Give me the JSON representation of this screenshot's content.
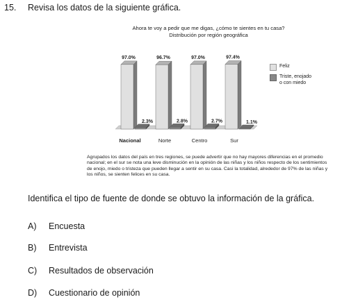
{
  "question": {
    "number": "15.",
    "text": "Revisa los datos de la siguiente gráfica."
  },
  "chart_title": {
    "line1": "Ahora te voy a pedir que me digas, ¿cómo te sientes en tu casa?",
    "line2": "Distribución por región geográfica"
  },
  "chart_data": {
    "type": "bar",
    "categories": [
      "Nacional",
      "Norte",
      "Centro",
      "Sur"
    ],
    "series": [
      {
        "name": "Feliz",
        "values": [
          97.0,
          96.7,
          97.0,
          97.4
        ],
        "labels": [
          "97.0%",
          "96.7%",
          "97.0%",
          "97.4%"
        ],
        "color": "#e0e0e0"
      },
      {
        "name": "Triste, enojado o con miedo",
        "values": [
          2.3,
          2.8,
          2.7,
          1.1
        ],
        "labels": [
          "2.3%",
          "2.8%",
          "2.7%",
          "1.1%"
        ],
        "color": "#888888"
      }
    ],
    "ylim": [
      0,
      100
    ],
    "legend": "right",
    "grid": false
  },
  "legend": {
    "feliz": "Feliz",
    "triste_line1": "Triste, enojado",
    "triste_line2": "o con miedo"
  },
  "note": "Agrupados los datos del país en tres regiones, se puede advertir que no hay mayores diferencias en el promedio nacional; en el sur se nota una leve disminución en la opinión de las niñas y los niños respecto de los sentimientos de enojo, miedo o tristeza que pueden llegar a sentir en su casa. Casi la totalidad, alrededor de 97% de las niñas y los niños, se sienten felices en su casa.",
  "instruction": "Identifica el tipo de fuente de donde se obtuvo la información de la gráfica.",
  "options": [
    {
      "letter": "A)",
      "text": "Encuesta"
    },
    {
      "letter": "B)",
      "text": "Entrevista"
    },
    {
      "letter": "C)",
      "text": "Resultados de observación"
    },
    {
      "letter": "D)",
      "text": "Cuestionario de opinión"
    }
  ]
}
